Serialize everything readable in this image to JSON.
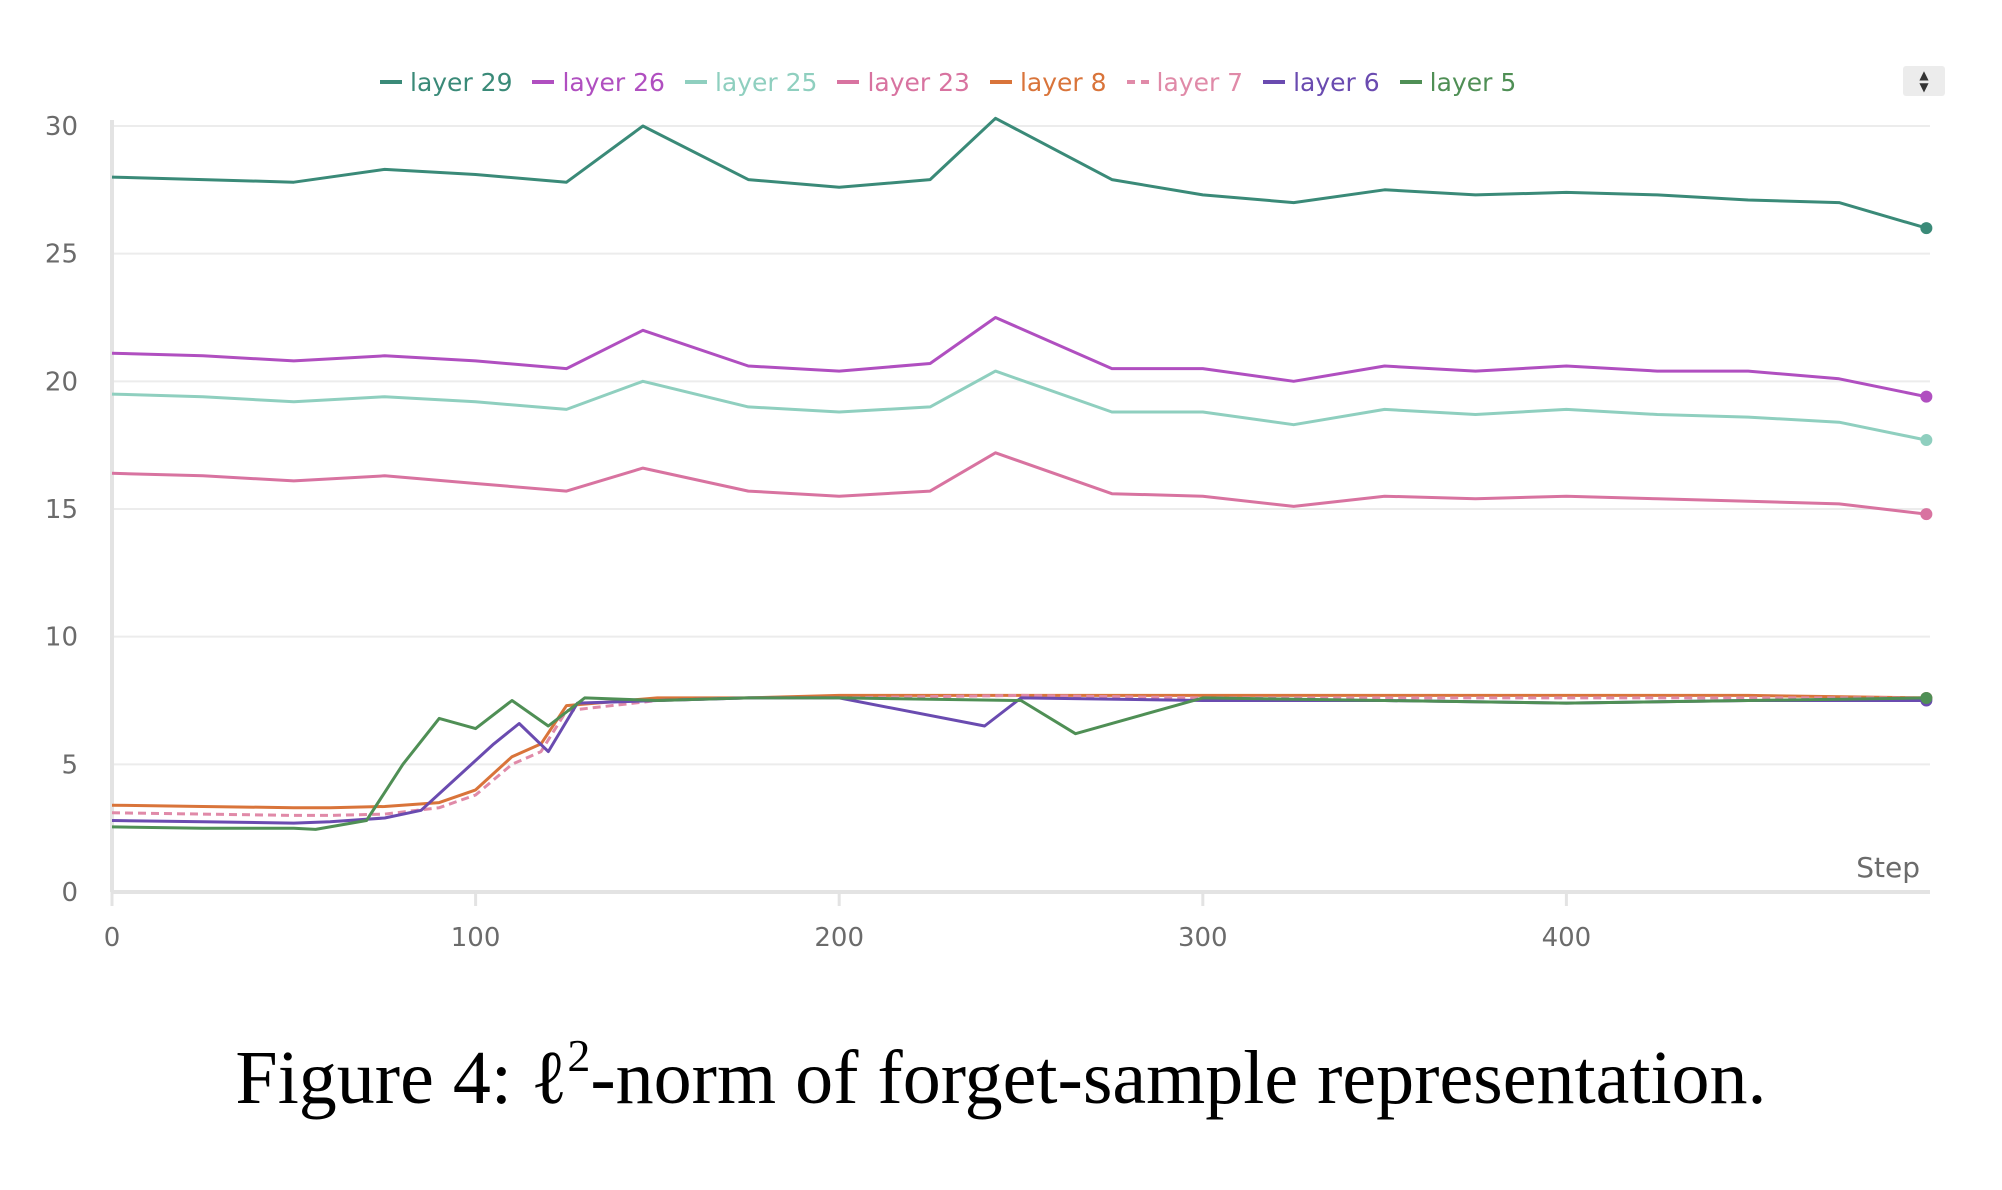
{
  "caption": {
    "prefix": "Figure 4: ℓ",
    "sup": "2",
    "suffix": "-norm of forget-sample representation."
  },
  "legend_scroll_icon": "legend-scroll-arrows",
  "chart_data": {
    "type": "line",
    "title": "",
    "xlabel": "Step",
    "ylabel": "",
    "xlim": [
      0,
      500
    ],
    "ylim": [
      0,
      30
    ],
    "xticks": [
      0,
      100,
      200,
      300,
      400
    ],
    "yticks": [
      0,
      5,
      10,
      15,
      20,
      25,
      30
    ],
    "grid": true,
    "legend_position": "top",
    "series": [
      {
        "name": "layer 29",
        "color": "#3a8a78",
        "dashed": false,
        "x": [
          0,
          25,
          50,
          75,
          100,
          125,
          146,
          175,
          200,
          225,
          243,
          275,
          300,
          325,
          350,
          375,
          400,
          425,
          450,
          475,
          499
        ],
        "y": [
          28.0,
          27.9,
          27.8,
          28.3,
          28.1,
          27.8,
          30.0,
          27.9,
          27.6,
          27.9,
          30.3,
          27.9,
          27.3,
          27.0,
          27.5,
          27.3,
          27.4,
          27.3,
          27.1,
          27.0,
          26.0
        ]
      },
      {
        "name": "layer 26",
        "color": "#b04fc0",
        "dashed": false,
        "x": [
          0,
          25,
          50,
          75,
          100,
          125,
          146,
          175,
          200,
          225,
          243,
          275,
          300,
          325,
          350,
          375,
          400,
          425,
          450,
          475,
          499
        ],
        "y": [
          21.1,
          21.0,
          20.8,
          21.0,
          20.8,
          20.5,
          22.0,
          20.6,
          20.4,
          20.7,
          22.5,
          20.5,
          20.5,
          20.0,
          20.6,
          20.4,
          20.6,
          20.4,
          20.4,
          20.1,
          19.4
        ]
      },
      {
        "name": "layer 25",
        "color": "#8fcfbf",
        "dashed": false,
        "x": [
          0,
          25,
          50,
          75,
          100,
          125,
          146,
          175,
          200,
          225,
          243,
          275,
          300,
          325,
          350,
          375,
          400,
          425,
          450,
          475,
          499
        ],
        "y": [
          19.5,
          19.4,
          19.2,
          19.4,
          19.2,
          18.9,
          20.0,
          19.0,
          18.8,
          19.0,
          20.4,
          18.8,
          18.8,
          18.3,
          18.9,
          18.7,
          18.9,
          18.7,
          18.6,
          18.4,
          17.7
        ]
      },
      {
        "name": "layer 23",
        "color": "#d873a0",
        "dashed": false,
        "x": [
          0,
          25,
          50,
          75,
          100,
          125,
          146,
          175,
          200,
          225,
          243,
          275,
          300,
          325,
          350,
          375,
          400,
          425,
          450,
          475,
          499
        ],
        "y": [
          16.4,
          16.3,
          16.1,
          16.3,
          16.0,
          15.7,
          16.6,
          15.7,
          15.5,
          15.7,
          17.2,
          15.6,
          15.5,
          15.1,
          15.5,
          15.4,
          15.5,
          15.4,
          15.3,
          15.2,
          14.8
        ]
      },
      {
        "name": "layer 8",
        "color": "#d9743a",
        "dashed": false,
        "x": [
          0,
          25,
          50,
          60,
          75,
          90,
          100,
          110,
          118,
          125,
          150,
          175,
          200,
          250,
          300,
          350,
          400,
          450,
          499
        ],
        "y": [
          3.4,
          3.35,
          3.3,
          3.3,
          3.35,
          3.5,
          4.0,
          5.3,
          5.8,
          7.3,
          7.6,
          7.6,
          7.7,
          7.7,
          7.7,
          7.7,
          7.7,
          7.7,
          7.6
        ]
      },
      {
        "name": "layer 7",
        "color": "#e08aa8",
        "dashed": true,
        "x": [
          0,
          25,
          50,
          60,
          75,
          90,
          100,
          110,
          118,
          125,
          150,
          175,
          200,
          250,
          300,
          350,
          400,
          450,
          499
        ],
        "y": [
          3.1,
          3.05,
          3.0,
          3.0,
          3.05,
          3.3,
          3.8,
          5.0,
          5.5,
          7.1,
          7.5,
          7.6,
          7.6,
          7.7,
          7.6,
          7.6,
          7.6,
          7.6,
          7.6
        ]
      },
      {
        "name": "layer 6",
        "color": "#6a4bb0",
        "dashed": false,
        "x": [
          0,
          25,
          50,
          60,
          75,
          85,
          95,
          105,
          112,
          120,
          128,
          150,
          175,
          200,
          240,
          250,
          300,
          350,
          400,
          450,
          499
        ],
        "y": [
          2.8,
          2.75,
          2.7,
          2.75,
          2.9,
          3.2,
          4.5,
          5.8,
          6.6,
          5.5,
          7.4,
          7.5,
          7.6,
          7.6,
          6.5,
          7.6,
          7.5,
          7.5,
          7.4,
          7.5,
          7.5
        ]
      },
      {
        "name": "layer 5",
        "color": "#4f8f55",
        "dashed": false,
        "x": [
          0,
          25,
          50,
          56,
          70,
          80,
          90,
          100,
          110,
          120,
          130,
          150,
          175,
          200,
          250,
          265,
          300,
          350,
          400,
          450,
          499
        ],
        "y": [
          2.55,
          2.5,
          2.5,
          2.45,
          2.8,
          5.0,
          6.8,
          6.4,
          7.5,
          6.5,
          7.6,
          7.5,
          7.6,
          7.6,
          7.5,
          6.2,
          7.6,
          7.5,
          7.4,
          7.5,
          7.6
        ]
      }
    ]
  }
}
